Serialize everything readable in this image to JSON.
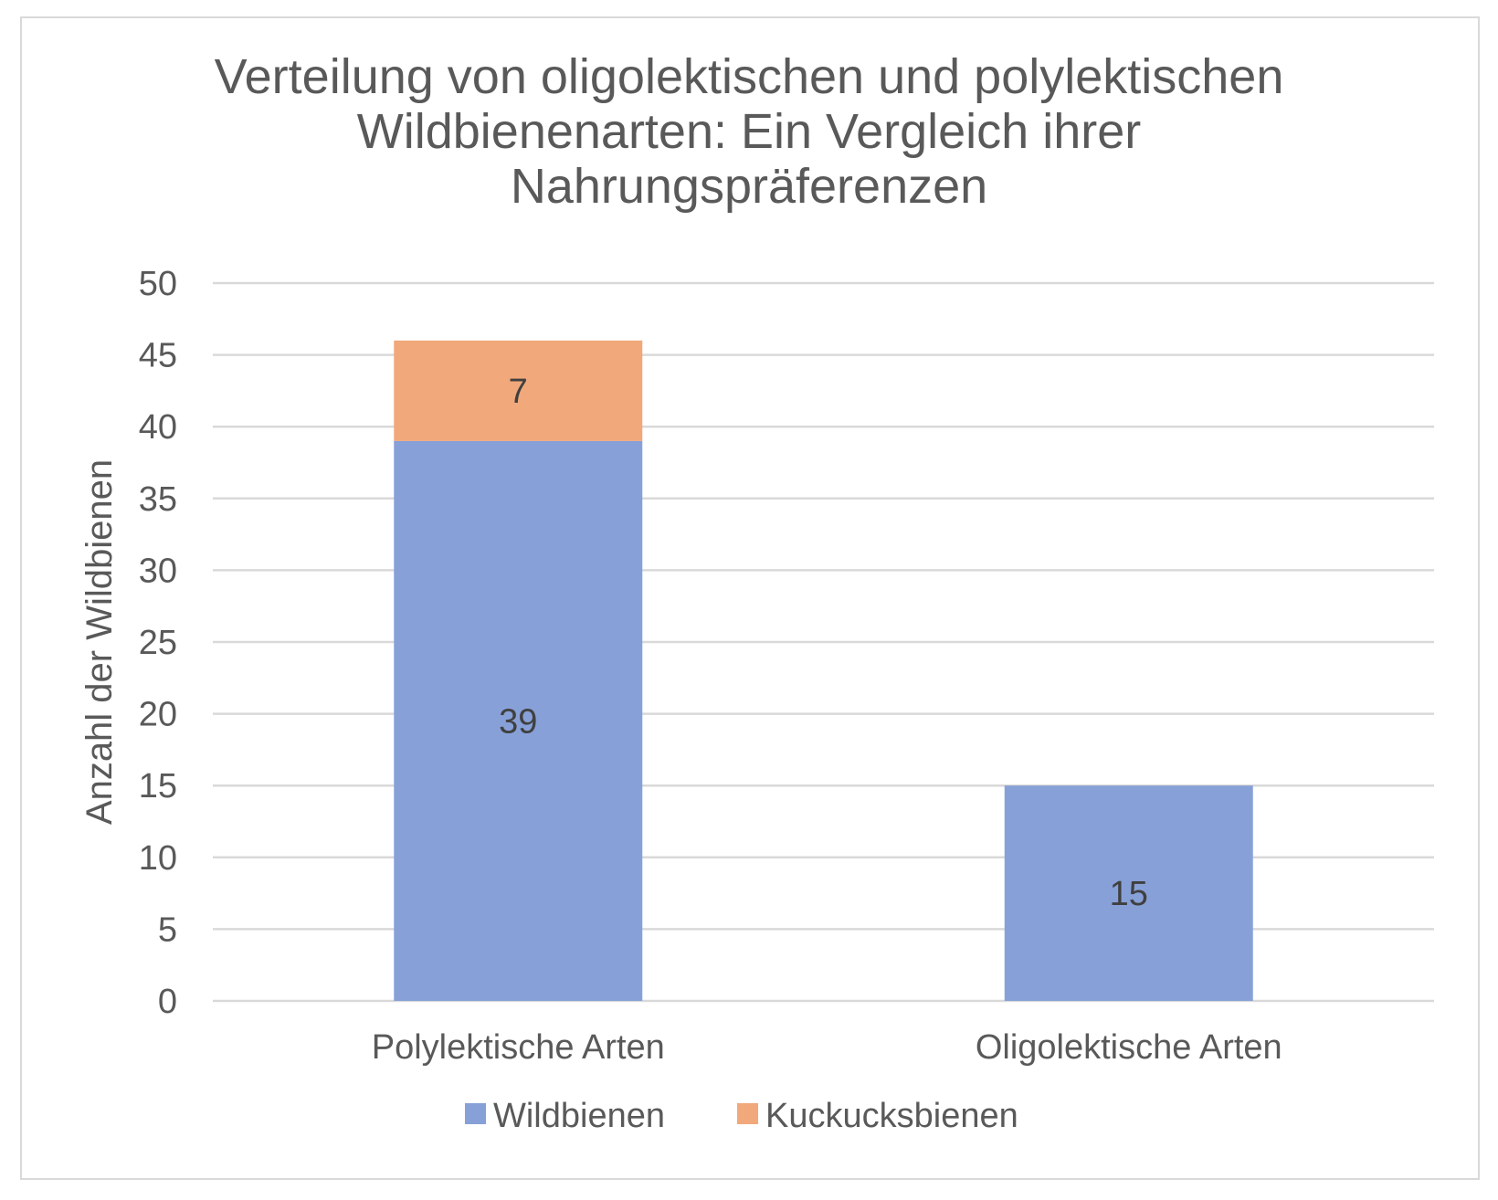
{
  "chart_data": {
    "type": "bar",
    "stacked": true,
    "title_lines": [
      "Verteilung von oligolektischen und polylektischen",
      "Wildbienenarten: Ein Vergleich ihrer",
      "Nahrungspräferenzen"
    ],
    "xlabel": "",
    "ylabel": "Anzahl der Wildbienen",
    "categories": [
      "Polylektische Arten",
      "Oligolektische Arten"
    ],
    "series": [
      {
        "name": "Wildbienen",
        "values": [
          39,
          15
        ],
        "color": "#87a1d8",
        "labels": [
          "39",
          "15"
        ]
      },
      {
        "name": "Kuckucksbienen",
        "values": [
          7,
          0
        ],
        "color": "#f1a87a",
        "labels": [
          "7",
          ""
        ]
      }
    ],
    "ylim": [
      0,
      50
    ],
    "yticks": [
      "0",
      "5",
      "10",
      "15",
      "20",
      "25",
      "30",
      "35",
      "40",
      "45",
      "50"
    ],
    "grid": true,
    "legend_position": "bottom",
    "colors": {
      "text": "#595959",
      "data_label": "#404040",
      "gridline": "#d9d9d9",
      "border": "#d9d9d9"
    }
  }
}
